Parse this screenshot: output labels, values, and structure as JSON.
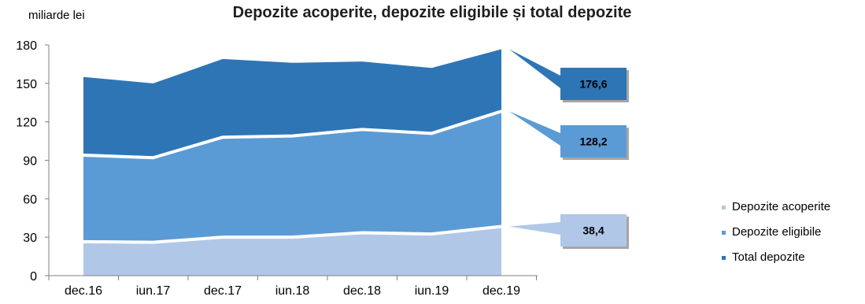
{
  "chart_data": {
    "type": "area",
    "title": "Depozite acoperite, depozite eligibile și total depozite",
    "ylabel": "miliarde lei",
    "xlabel": "",
    "categories": [
      "dec.16",
      "iun.17",
      "dec.17",
      "iun.18",
      "dec.18",
      "iun.19",
      "dec.19"
    ],
    "ylim": [
      0,
      180
    ],
    "yticks": [
      0,
      30,
      60,
      90,
      120,
      150,
      180
    ],
    "grid": false,
    "legend_position": "right",
    "series": [
      {
        "name": "Depozite acoperite",
        "values": [
          26.5,
          26,
          30,
          30,
          33.5,
          32.5,
          38.4
        ],
        "color": "#b1c7e7",
        "callout": "38,4"
      },
      {
        "name": "Depozite eligibile",
        "values": [
          94,
          92,
          108,
          109,
          114,
          111,
          128.2
        ],
        "color": "#5b9bd5",
        "callout": "128,2"
      },
      {
        "name": "Total depozite",
        "values": [
          155,
          150,
          169,
          166,
          167,
          162,
          176.6
        ],
        "color": "#2e75b6",
        "callout": "176,6"
      }
    ]
  }
}
